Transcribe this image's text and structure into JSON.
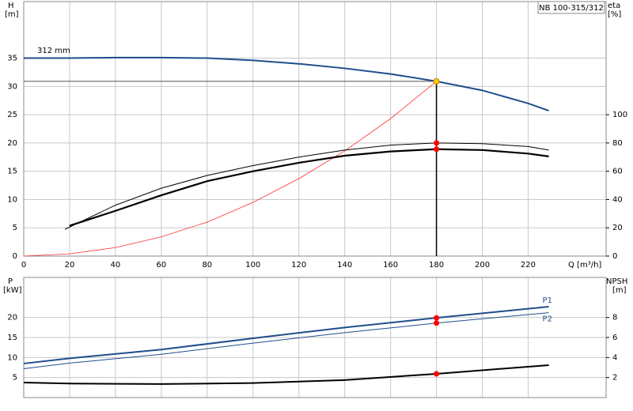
{
  "chart_data": [
    {
      "type": "line",
      "title": "NB 100-315/312",
      "annotation": "312 mm",
      "ylabel": "H",
      "yunit": "[m]",
      "y2label": "eta",
      "y2unit": "[%]",
      "xlabel": "Q [m³/h]",
      "xlim": [
        0,
        254
      ],
      "xticks": [
        0,
        20,
        40,
        60,
        80,
        100,
        120,
        140,
        160,
        180,
        200,
        220
      ],
      "ylim": [
        0,
        45
      ],
      "yticks": [
        0,
        5,
        10,
        15,
        20,
        25,
        30,
        35
      ],
      "y2lim": [
        0,
        180
      ],
      "y2ticks": [
        0,
        20,
        40,
        60,
        80,
        100
      ],
      "grid": true,
      "series": [
        {
          "color": "#1f4e8c",
          "line_width": 2,
          "dot_color": "#ffcc00",
          "x": [
            0,
            20,
            40,
            60,
            80,
            100,
            120,
            140,
            160,
            180,
            200,
            220,
            229
          ],
          "values": [
            35,
            35,
            35.1,
            35.1,
            35,
            34.6,
            34,
            33.2,
            32.2,
            30.9,
            29.3,
            27,
            25.7
          ]
        },
        {
          "color": "#ff3030",
          "line_width": 0.8,
          "x": [
            0,
            20,
            40,
            60,
            80,
            100,
            120,
            140,
            160,
            180
          ],
          "values": [
            0,
            0.4,
            1.5,
            3.4,
            6,
            9.5,
            13.7,
            18.6,
            24.3,
            30.9
          ]
        },
        {
          "color": "#000000",
          "line_width": 1,
          "axis": "y2",
          "dot_color": "#ff0000",
          "x": [
            18,
            40,
            60,
            80,
            100,
            120,
            140,
            160,
            180,
            200,
            220,
            229
          ],
          "values": [
            19,
            36,
            48,
            57,
            64,
            70,
            75,
            78.5,
            80,
            79.5,
            77.5,
            75
          ]
        },
        {
          "color": "#000000",
          "line_width": 2.2,
          "axis": "y2",
          "dot_color": "#ff0000",
          "x": [
            20,
            40,
            60,
            80,
            100,
            120,
            140,
            160,
            180,
            200,
            220,
            229
          ],
          "values": [
            21.5,
            32,
            43,
            53,
            60,
            66,
            71,
            74,
            75.6,
            75,
            72.5,
            70.5
          ]
        }
      ]
    },
    {
      "type": "line",
      "ylabel": "P",
      "yunit": "[kW]",
      "y2label": "NPSH",
      "y2unit": "[m]",
      "xlim": [
        0,
        254
      ],
      "ylim": [
        0,
        30
      ],
      "yticks": [
        5,
        10,
        15,
        20
      ],
      "y2lim": [
        0,
        12
      ],
      "y2ticks": [
        2,
        4,
        6,
        8
      ],
      "grid": true,
      "series": [
        {
          "name": "P1",
          "color": "#1f4e8c",
          "line_width": 2,
          "dot_color": "#ff0000",
          "x": [
            0,
            20,
            60,
            100,
            140,
            180,
            229
          ],
          "values": [
            8.5,
            9.8,
            12,
            14.8,
            17.5,
            19.9,
            22.7
          ]
        },
        {
          "name": "P2",
          "color": "#1f4e8c",
          "line_width": 1,
          "dot_color": "#ff0000",
          "x": [
            0,
            20,
            60,
            100,
            140,
            180,
            229
          ],
          "values": [
            7.2,
            8.6,
            10.8,
            13.6,
            16.2,
            18.6,
            21.2
          ]
        },
        {
          "color": "#000000",
          "line_width": 2,
          "axis": "y2",
          "dot_color": "#ff0000",
          "x": [
            0,
            20,
            60,
            100,
            140,
            180,
            229
          ],
          "values": [
            1.5,
            1.4,
            1.35,
            1.45,
            1.75,
            2.37,
            3.24
          ]
        }
      ]
    }
  ]
}
